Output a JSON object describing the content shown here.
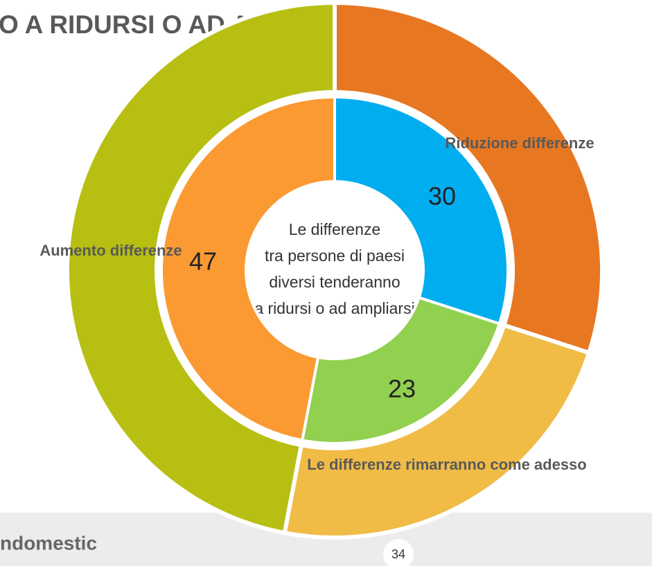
{
  "chart_data": {
    "type": "donut",
    "title": "O A RIDURSI O AD AMPLIARSI?",
    "center_text": [
      "Le differenze",
      "tra persone di paesi",
      "diversi tenderanno",
      "a ridursi o ad ampliarsi"
    ],
    "categories": [
      "Riduzione differenze",
      "Le differenze rimarranno come adesso",
      "Aumento differenze"
    ],
    "values": [
      30,
      23,
      47
    ],
    "colors": [
      "#00aeef",
      "#92d050",
      "#fb9a33"
    ],
    "outer_colors": [
      "#e87722",
      "#f0bc46",
      "#b7bf12"
    ]
  },
  "footer": {
    "brand": "ndomestic",
    "page_number": 34
  }
}
